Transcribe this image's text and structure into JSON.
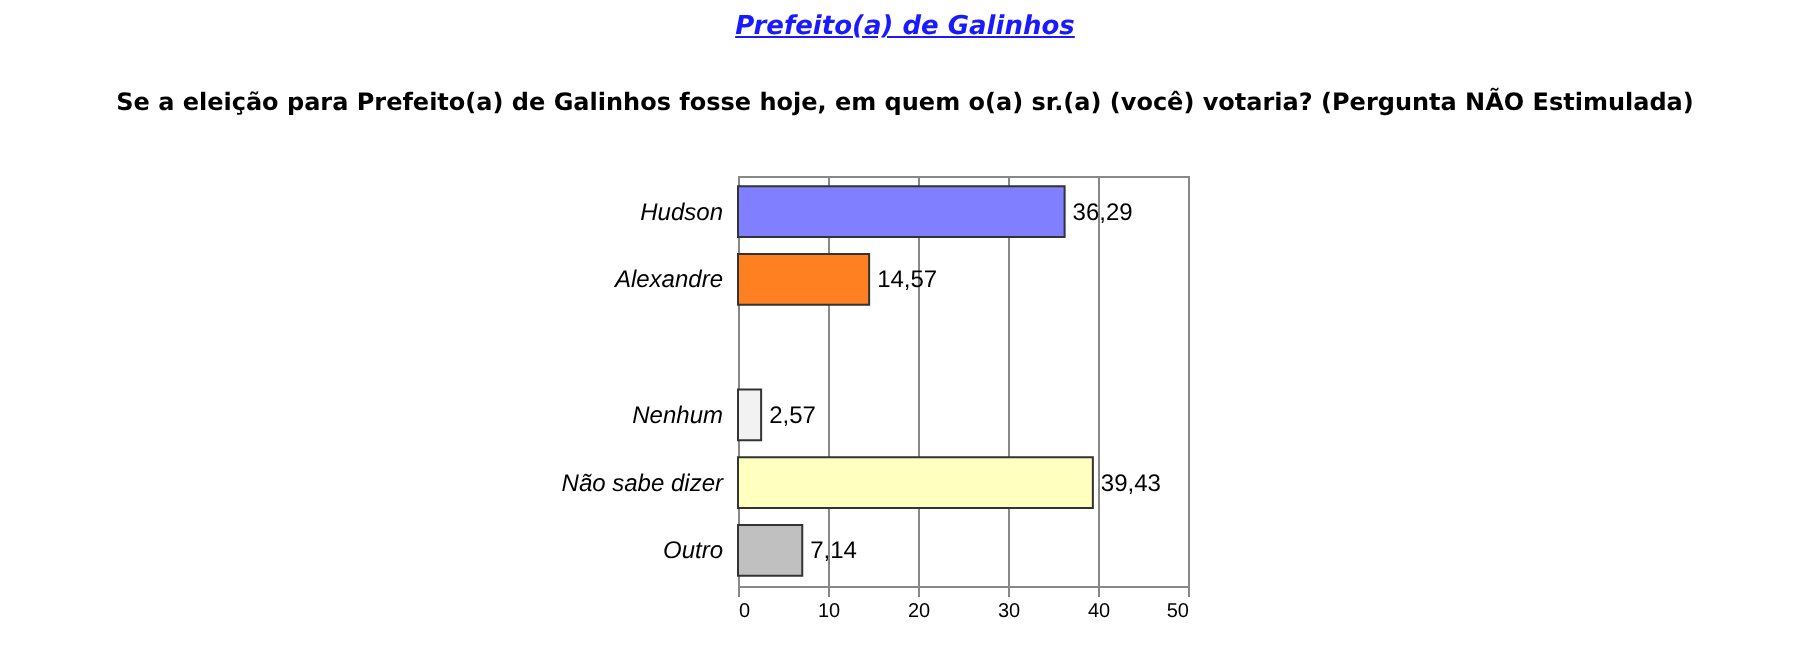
{
  "chart_data": {
    "type": "bar",
    "orientation": "horizontal",
    "title": "Prefeito(a) de Galinhos",
    "subtitle": "Se a eleição para Prefeito(a) de Galinhos fosse hoje, em quem o(a) sr.(a) (você) votaria?    (Pergunta NÃO Estimulada)",
    "categories": [
      "Hudson",
      "Alexandre",
      null,
      "Nenhum",
      "Não sabe dizer",
      "Outro"
    ],
    "values": [
      36.29,
      14.57,
      null,
      2.57,
      39.43,
      7.14
    ],
    "colors": [
      "#7f7fff",
      "#ff8020",
      null,
      "#f2f2f2",
      "#ffffc0",
      "#c0c0c0"
    ],
    "value_labels": [
      "36,29",
      "14,57",
      null,
      "2,57",
      "39,43",
      "7,14"
    ],
    "xlim": [
      0,
      50
    ],
    "xticks": [
      0,
      10,
      20,
      30,
      40,
      50
    ],
    "grid": "x"
  }
}
